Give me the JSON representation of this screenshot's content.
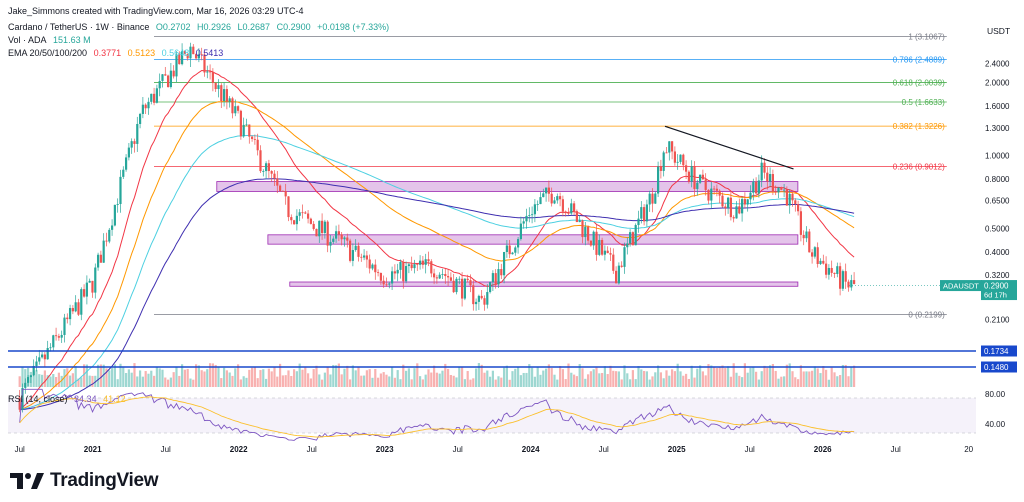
{
  "header": {
    "author_line": "Jake_Simmons created with TradingView.com, Mar 16, 2026 03:29 UTC-4",
    "symbol_line": "Cardano / TetherUS · 1W · Binance",
    "ohlc": {
      "o": "O0.2702",
      "h": "H0.2926",
      "l": "L0.2687",
      "c": "C0.2900",
      "chg": "+0.0198 (+7.33%)"
    },
    "vol_label": "Vol · ADA",
    "vol_value": "151.63 M",
    "ema_label": "EMA 20/50/100/200",
    "ema_values": [
      "0.3771",
      "0.5123",
      "0.5648",
      "0.5413"
    ],
    "rsi_label": "RSI (14, close)",
    "rsi_values": [
      "34.34",
      "41.12"
    ]
  },
  "colors": {
    "up": "#26a69a",
    "down": "#ef5350",
    "ema20": "#f23645",
    "ema50": "#ff9800",
    "ema100": "#4dd0e1",
    "ema200": "#3f2fb0",
    "rsi": "#7e57c2",
    "rsi_ma": "#fbc02d",
    "zone": "#ce93d8",
    "support": "#1848cc"
  },
  "price_axis": {
    "currency": "USDT",
    "ticks": [
      "2.4000",
      "2.0000",
      "1.6000",
      "1.3000",
      "1.0000",
      "0.8000",
      "0.6500",
      "0.5000",
      "0.4000",
      "0.3200",
      "0.2100"
    ]
  },
  "rsi_axis": {
    "ticks": [
      "80.00",
      "40.00"
    ]
  },
  "time_axis": {
    "labels": [
      "Jul",
      "2021",
      "Jul",
      "2022",
      "Jul",
      "2023",
      "Jul",
      "2024",
      "Jul",
      "2025",
      "Jul",
      "2026",
      "Jul",
      "20"
    ]
  },
  "fib_levels": [
    {
      "label": "1 (3.1067)",
      "color": "#787b86"
    },
    {
      "label": "0.786 (2.4889)",
      "color": "#2196f3"
    },
    {
      "label": "0.618 (2.0039)",
      "color": "#4caf50"
    },
    {
      "label": "0.5 (1.6633)",
      "color": "#4caf50"
    },
    {
      "label": "0.382 (1.3226)",
      "color": "#ff9800"
    },
    {
      "label": "0.236 (0.9012)",
      "color": "#f23645"
    },
    {
      "label": "0 (0.2199)",
      "color": "#787b86"
    }
  ],
  "support_lines": [
    {
      "label": "0.1734"
    },
    {
      "label": "0.1480"
    }
  ],
  "current_price": {
    "symbol": "ADAUSDT",
    "value": "0.2900",
    "countdown": "6d 17h"
  },
  "chart_data": {
    "type": "line",
    "title": "Cardano / TetherUS · 1W · Binance",
    "x": [
      "2020-07",
      "2021-01",
      "2021-05",
      "2021-09",
      "2022-01",
      "2022-05",
      "2022-09",
      "2023-01",
      "2023-05",
      "2023-09",
      "2024-01",
      "2024-03",
      "2024-08",
      "2024-11",
      "2024-12",
      "2025-03",
      "2025-06",
      "2025-08",
      "2025-10",
      "2025-12",
      "2026-03"
    ],
    "series": [
      {
        "values": [
          0.1,
          0.3,
          1.5,
          2.8,
          1.4,
          0.6,
          0.45,
          0.32,
          0.35,
          0.25,
          0.6,
          0.72,
          0.33,
          0.7,
          1.1,
          0.75,
          0.6,
          0.85,
          0.7,
          0.4,
          0.29
        ]
      }
    ],
    "ylim": [
      0.1,
      3.3
    ],
    "log_scale": true,
    "grid": false
  },
  "brand": {
    "name": "TradingView"
  }
}
